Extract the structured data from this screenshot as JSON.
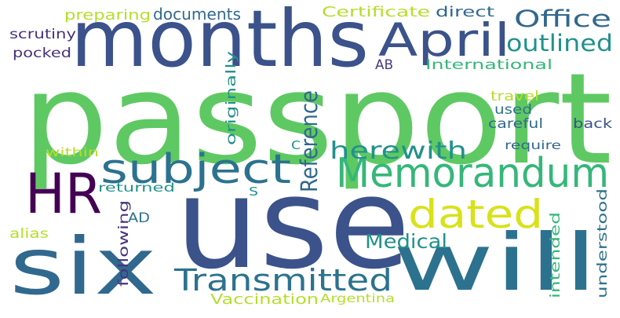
{
  "word_cloud": {
    "background": "#ffffff",
    "words": [
      {
        "text": "passport",
        "color": "#5ec962"
      },
      {
        "text": "use",
        "color": "#3b528b"
      },
      {
        "text": "months",
        "color": "#3b528b"
      },
      {
        "text": "six",
        "color": "#31688e"
      },
      {
        "text": "will",
        "color": "#2c728e"
      },
      {
        "text": "HR",
        "color": "#440154"
      },
      {
        "text": "Memorandum",
        "color": "#35b779"
      },
      {
        "text": "subject",
        "color": "#2c728e"
      },
      {
        "text": "April",
        "color": "#3b528b"
      },
      {
        "text": "dated",
        "color": "#d8e219"
      },
      {
        "text": "Transmitted",
        "color": "#2c728e"
      },
      {
        "text": "Office",
        "color": "#31688e"
      },
      {
        "text": "outlined",
        "color": "#21918c"
      },
      {
        "text": "herewith",
        "color": "#21918c"
      },
      {
        "text": "Reference",
        "color": "#31688e"
      },
      {
        "text": "Medical",
        "color": "#21918c"
      },
      {
        "text": "documents",
        "color": "#31688e"
      },
      {
        "text": "preparing",
        "color": "#b5de2b"
      },
      {
        "text": "Certificate",
        "color": "#b5de2b"
      },
      {
        "text": "direct",
        "color": "#31688e"
      },
      {
        "text": "scrutiny",
        "color": "#46327e"
      },
      {
        "text": "pocked",
        "color": "#46327e"
      },
      {
        "text": "AB",
        "color": "#443983"
      },
      {
        "text": "International",
        "color": "#35b779"
      },
      {
        "text": "originally",
        "color": "#21918c"
      },
      {
        "text": "travel",
        "color": "#b5de2b"
      },
      {
        "text": "used",
        "color": "#2c728e"
      },
      {
        "text": "careful",
        "color": "#31688e"
      },
      {
        "text": "back",
        "color": "#3b528b"
      },
      {
        "text": "require",
        "color": "#31688e"
      },
      {
        "text": "within",
        "color": "#b5de2b"
      },
      {
        "text": "returned",
        "color": "#21918c"
      },
      {
        "text": "S",
        "color": "#21918c"
      },
      {
        "text": "C",
        "color": "#21918c"
      },
      {
        "text": "following",
        "color": "#46327e"
      },
      {
        "text": "AD",
        "color": "#2c728e"
      },
      {
        "text": "alias",
        "color": "#b5de2b"
      },
      {
        "text": "intended",
        "color": "#35b779"
      },
      {
        "text": "understood",
        "color": "#2c728e"
      },
      {
        "text": "Vaccination",
        "color": "#b5de2b"
      },
      {
        "text": "Argentina",
        "color": "#b5de2b"
      }
    ]
  }
}
